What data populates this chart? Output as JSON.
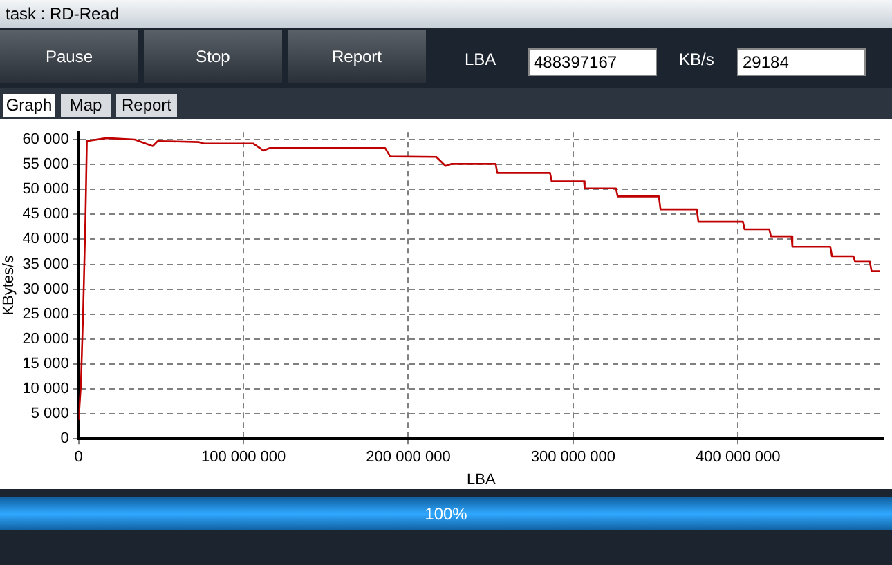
{
  "chart_data": {
    "type": "line",
    "title": "task : RD-Read",
    "xlabel": "LBA",
    "ylabel": "KBytes/s",
    "annotations": [
      "Pause",
      "Stop",
      "Report",
      "LBA",
      "488397167",
      "KB/s",
      "29184",
      "Graph",
      "Map",
      "Report",
      "100%"
    ],
    "series": [
      {
        "color": "#c00000",
        "x": [
          0,
          1400000,
          2800000,
          4200000,
          5000000,
          17000000,
          34000000,
          45000000,
          48000000,
          73000000,
          76000000,
          106000000,
          110000000,
          112000000,
          116000000,
          186000000,
          189000000,
          217000000,
          222600000,
          226000000,
          253000000,
          254000000,
          286000000,
          287000000,
          306600000,
          307000000,
          326000000,
          327000000,
          352000000,
          353000000,
          375000000,
          376000000,
          403000000,
          404000000,
          419000000,
          420000000,
          432500000,
          433000000,
          456000000,
          457000000,
          470000000,
          471000000,
          480000000,
          481000000,
          486000000
        ],
        "values": [
          3800,
          10900,
          26000,
          45000,
          59700,
          60300,
          60000,
          58700,
          59700,
          59500,
          59200,
          59200,
          58300,
          57800,
          58300,
          58300,
          56600,
          56500,
          54700,
          55100,
          55100,
          53300,
          53300,
          51600,
          51600,
          50200,
          50200,
          48600,
          48600,
          46000,
          46000,
          43500,
          43500,
          42000,
          42000,
          40600,
          40600,
          38500,
          38500,
          36600,
          36600,
          35500,
          35500,
          33600,
          33600
        ]
      }
    ],
    "xlim": [
      0,
      488397167
    ],
    "xticks": [
      0,
      {
        "value": 100000000,
        "label": "100 000 000"
      },
      {
        "value": 200000000,
        "label": "200 000 000"
      },
      {
        "value": 300000000,
        "label": "300 000 000"
      },
      {
        "value": 400000000,
        "label": "400 000 000"
      }
    ],
    "ylim": [
      0,
      61500
    ],
    "yticks": [
      0,
      {
        "value": 5000,
        "label": "5 000"
      },
      {
        "value": 10000,
        "label": "10 000"
      },
      {
        "value": 15000,
        "label": "15 000"
      },
      {
        "value": 20000,
        "label": "20 000"
      },
      {
        "value": 25000,
        "label": "25 000"
      },
      {
        "value": 30000,
        "label": "30 000"
      },
      {
        "value": 35000,
        "label": "35 000"
      },
      {
        "value": 40000,
        "label": "40 000"
      },
      {
        "value": 45000,
        "label": "45 000"
      },
      {
        "value": 50000,
        "label": "50 000"
      },
      {
        "value": 55000,
        "label": "55 000"
      },
      {
        "value": 60000,
        "label": "60 000"
      }
    ],
    "grid": true,
    "legend": false,
    "marker": "none",
    "line_style": "solid"
  }
}
